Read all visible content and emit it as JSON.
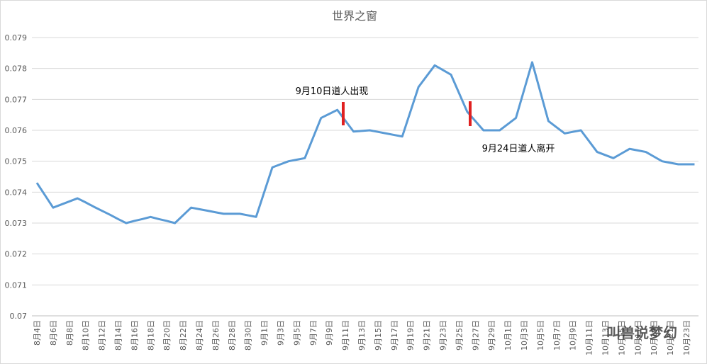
{
  "chart_data": {
    "type": "line",
    "title": "世界之窗",
    "categories": [
      "8月4日",
      null,
      "8月6日",
      null,
      "8月8日",
      null,
      "8月10日",
      null,
      "8月12日",
      null,
      "8月14日",
      null,
      "8月16日",
      null,
      "8月18日",
      null,
      "8月20日",
      null,
      "8月22日",
      null,
      "8月24日",
      null,
      "8月26日",
      null,
      "8月28日",
      null,
      "8月30日",
      null,
      "9月1日",
      null,
      "9月3日",
      null,
      "9月5日",
      null,
      "9月7日",
      null,
      "9月9日",
      null,
      "9月11日",
      null,
      "9月13日",
      null,
      "9月15日",
      null,
      "9月17日",
      null,
      "9月19日",
      null,
      "9月21日",
      null,
      "9月23日",
      null,
      "9月25日",
      null,
      "9月27日",
      null,
      "9月29日",
      null,
      "10月1日",
      null,
      "10月3日",
      null,
      "10月5日",
      null,
      "10月7日",
      null,
      "10月9日",
      null,
      "10月11日",
      null,
      "10月13日",
      null,
      "10月15日",
      null,
      "10月17日",
      null,
      "10月19日",
      null,
      "10月21日",
      null,
      "10月23日",
      null
    ],
    "series": [
      {
        "color": "#5b9bd5",
        "values": [
          0.0743,
          0.0739,
          0.0735,
          0.0736,
          0.0737,
          0.0738,
          0.07367,
          0.07353,
          0.0734,
          0.07327,
          0.07313,
          0.073,
          0.07307,
          0.07313,
          0.0732,
          0.07313,
          0.07307,
          0.073,
          0.07325,
          0.0735,
          0.07345,
          0.0734,
          0.07335,
          0.0733,
          0.0733,
          0.0733,
          0.07325,
          0.0732,
          0.074,
          0.0748,
          0.0749,
          0.075,
          0.07505,
          0.0751,
          0.07575,
          0.0764,
          0.07653,
          0.07666,
          0.07631,
          0.07596,
          0.07598,
          0.076,
          0.07595,
          0.0759,
          0.07585,
          0.0758,
          0.0766,
          0.0774,
          0.07775,
          0.0781,
          0.07795,
          0.0778,
          0.0772,
          0.0766,
          0.0763,
          0.076,
          0.076,
          0.076,
          0.0762,
          0.0764,
          0.0773,
          0.0782,
          0.07725,
          0.0763,
          0.0761,
          0.0759,
          0.07595,
          0.076,
          0.07565,
          0.0753,
          0.0752,
          0.0751,
          0.07525,
          0.0754,
          0.07535,
          0.0753,
          0.07515,
          0.075,
          0.07495,
          0.0749,
          0.0749,
          0.0749
        ]
      }
    ],
    "ylim": [
      0.07,
      0.079
    ],
    "yticks": [
      0.07,
      0.071,
      0.072,
      0.073,
      0.074,
      0.075,
      0.076,
      0.077,
      0.078,
      0.079
    ],
    "grid": true,
    "annotations": [
      "9月10日道人出现",
      "9月24日道人离开"
    ],
    "watermark": "叫兽说梦幻"
  }
}
